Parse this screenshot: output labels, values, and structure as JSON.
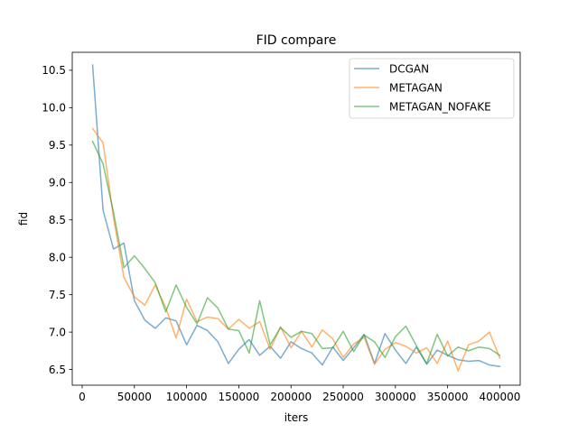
{
  "chart_data": {
    "type": "line",
    "title": "FID compare",
    "xlabel": "iters",
    "ylabel": "fid",
    "xlim": [
      -9500,
      419500
    ],
    "ylim": [
      6.29,
      10.74
    ],
    "x_ticks": [
      0,
      50000,
      100000,
      150000,
      200000,
      250000,
      300000,
      350000,
      400000
    ],
    "y_ticks": [
      6.5,
      7.0,
      7.5,
      8.0,
      8.5,
      9.0,
      9.5,
      10.0,
      10.5
    ],
    "y_tick_labels": [
      "6.5",
      "7.0",
      "7.5",
      "8.0",
      "8.5",
      "9.0",
      "9.5",
      "10.0",
      "10.5"
    ],
    "grid": false,
    "legend": "top-right",
    "x": [
      10000,
      20000,
      30000,
      40000,
      50000,
      60000,
      70000,
      80000,
      90000,
      100000,
      110000,
      120000,
      130000,
      140000,
      150000,
      160000,
      170000,
      180000,
      190000,
      200000,
      210000,
      220000,
      230000,
      240000,
      250000,
      260000,
      270000,
      280000,
      290000,
      300000,
      310000,
      320000,
      330000,
      340000,
      350000,
      360000,
      370000,
      380000,
      390000,
      400000
    ],
    "series": [
      {
        "name": "DCGAN",
        "color": "#1f77b4",
        "values": [
          10.57,
          8.63,
          8.11,
          8.19,
          7.42,
          7.16,
          7.05,
          7.19,
          7.15,
          6.83,
          7.09,
          7.02,
          6.87,
          6.58,
          6.77,
          6.9,
          6.69,
          6.81,
          6.65,
          6.87,
          6.78,
          6.72,
          6.56,
          6.8,
          6.62,
          6.79,
          6.97,
          6.58,
          6.98,
          6.76,
          6.58,
          6.8,
          6.57,
          6.76,
          6.69,
          6.63,
          6.61,
          6.62,
          6.56,
          6.54
        ]
      },
      {
        "name": "METAGAN",
        "color": "#ff7f0e",
        "values": [
          9.72,
          9.53,
          8.53,
          7.73,
          7.47,
          7.36,
          7.63,
          7.33,
          6.92,
          7.44,
          7.14,
          7.2,
          7.18,
          7.04,
          7.17,
          7.05,
          7.14,
          6.77,
          7.07,
          6.79,
          7.01,
          6.8,
          7.03,
          6.91,
          6.66,
          6.84,
          6.93,
          6.57,
          6.77,
          6.86,
          6.81,
          6.72,
          6.79,
          6.58,
          6.88,
          6.48,
          6.83,
          6.88,
          7.0,
          6.65
        ]
      },
      {
        "name": "METAGAN_NOFAKE",
        "color": "#2ca02c",
        "values": [
          9.55,
          9.25,
          8.6,
          7.86,
          8.02,
          7.85,
          7.66,
          7.27,
          7.63,
          7.33,
          7.11,
          7.46,
          7.32,
          7.04,
          7.02,
          6.72,
          7.42,
          6.83,
          7.06,
          6.93,
          7.01,
          6.98,
          6.78,
          6.79,
          7.01,
          6.74,
          6.96,
          6.87,
          6.66,
          6.94,
          7.08,
          6.82,
          6.58,
          6.97,
          6.68,
          6.8,
          6.75,
          6.8,
          6.78,
          6.69
        ]
      }
    ]
  }
}
